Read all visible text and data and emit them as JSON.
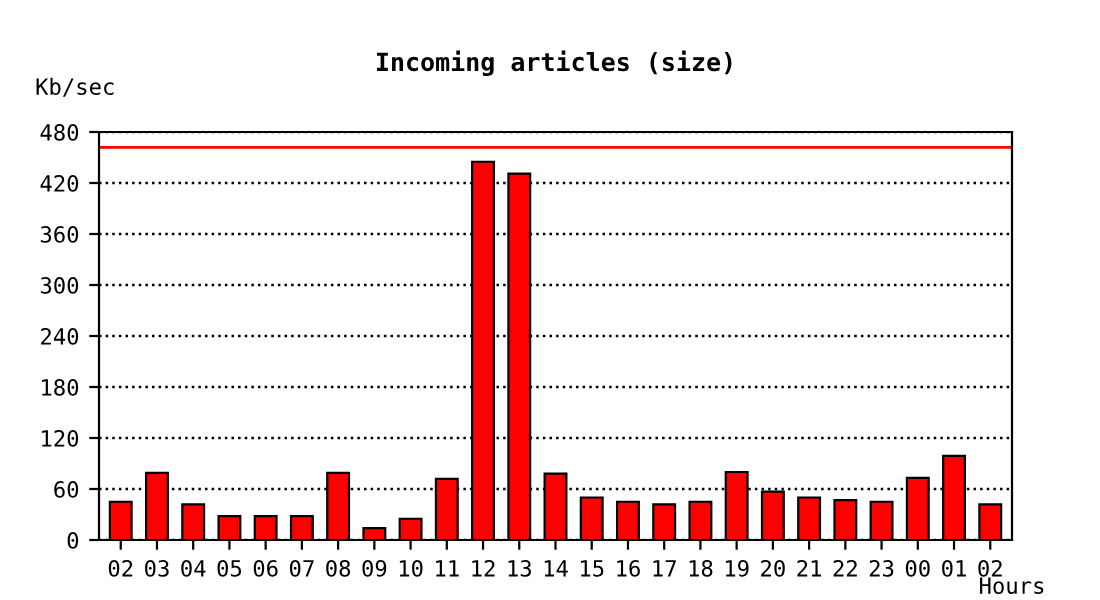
{
  "chart_data": {
    "type": "bar",
    "title": "Incoming articles (size)",
    "ylabel": "Kb/sec",
    "xlabel": "Hours",
    "categories": [
      "02",
      "03",
      "04",
      "05",
      "06",
      "07",
      "08",
      "09",
      "10",
      "11",
      "12",
      "13",
      "14",
      "15",
      "16",
      "17",
      "18",
      "19",
      "20",
      "21",
      "22",
      "23",
      "00",
      "01",
      "02"
    ],
    "values": [
      45,
      79,
      42,
      28,
      28,
      28,
      79,
      14,
      25,
      72,
      445,
      431,
      78,
      50,
      45,
      42,
      45,
      80,
      57,
      50,
      47,
      45,
      73,
      99,
      42
    ],
    "color": "#ff0000",
    "ylim": [
      0,
      480
    ],
    "yticks": [
      0,
      60,
      120,
      180,
      240,
      300,
      360,
      420,
      480
    ],
    "grid": "y",
    "line_style": "dotted",
    "ref_lines": [
      {
        "axis": "y",
        "value": 462,
        "color": "#ff0000"
      }
    ]
  }
}
